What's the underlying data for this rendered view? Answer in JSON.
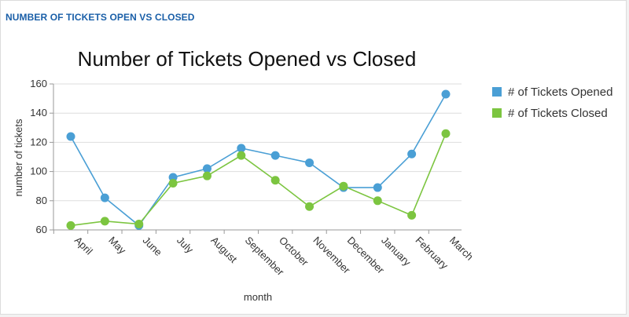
{
  "panel": {
    "title": "NUMBER OF TICKETS OPEN VS CLOSED",
    "title_color": "#1a5fa8"
  },
  "chart_data": {
    "type": "line",
    "title": "Number of Tickets Opened vs Closed",
    "xlabel": "month",
    "ylabel": "number of tickets",
    "categories": [
      "April",
      "May",
      "June",
      "July",
      "August",
      "September",
      "October",
      "November",
      "December",
      "January",
      "February",
      "March"
    ],
    "ylim": [
      60,
      160
    ],
    "yticks": [
      60,
      80,
      100,
      120,
      140,
      160
    ],
    "grid": true,
    "legend_position": "right",
    "series": [
      {
        "name": "# of Tickets Opened",
        "color": "#4a9fd5",
        "values": [
          124,
          82,
          63,
          96,
          102,
          116,
          111,
          106,
          89,
          89,
          112,
          153
        ]
      },
      {
        "name": "# of Tickets Closed",
        "color": "#7cc540",
        "values": [
          63,
          66,
          64,
          92,
          97,
          111,
          94,
          76,
          90,
          80,
          70,
          126
        ]
      }
    ]
  }
}
